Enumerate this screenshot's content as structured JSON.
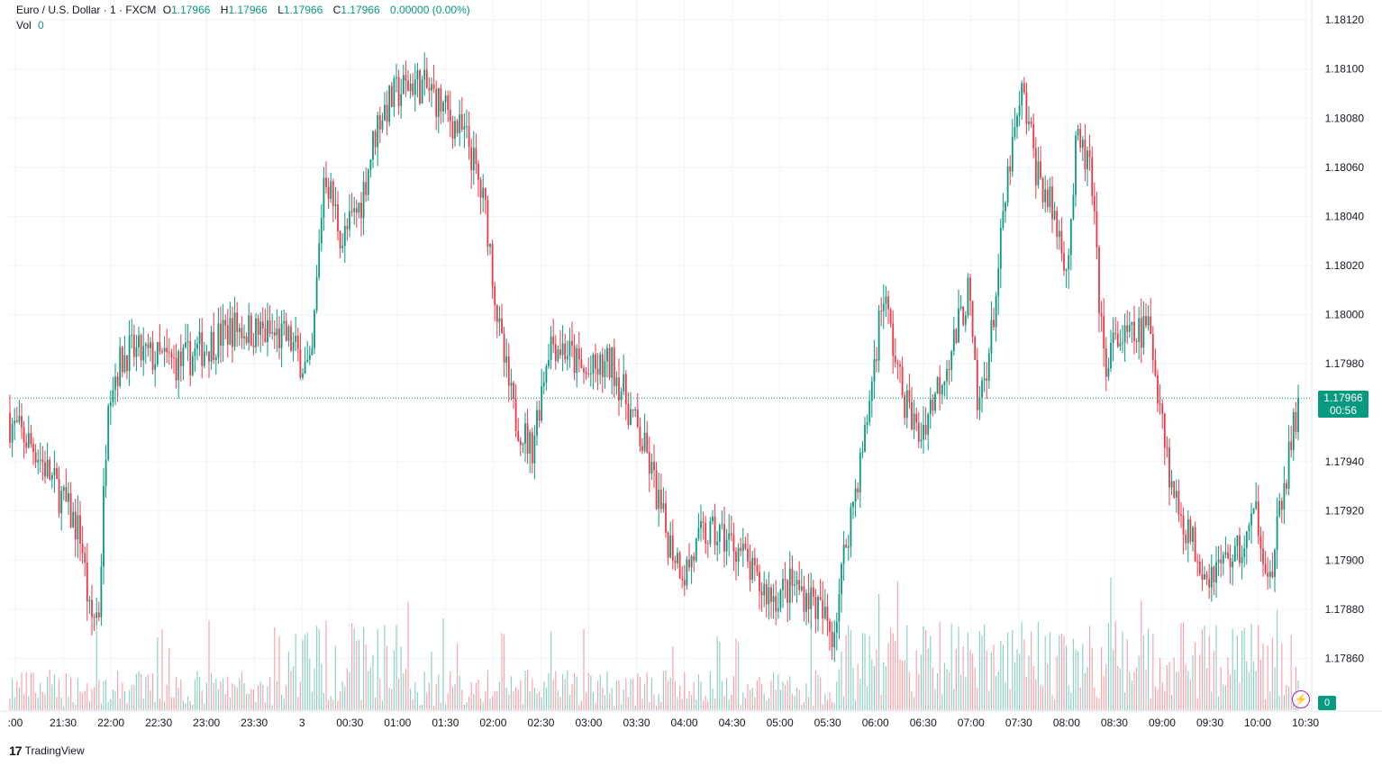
{
  "legend": {
    "symbol": "Euro / U.S. Dollar · 1 · FXCM",
    "o_label": "O",
    "o": "1.17966",
    "h_label": "H",
    "h": "1.17966",
    "l_label": "L",
    "l": "1.17966",
    "c_label": "C",
    "c": "1.17966",
    "change": "0.00000 (0.00%)",
    "vol_label": "Vol",
    "vol": "0"
  },
  "price_tag": {
    "price": "1.17966",
    "countdown": "00:56"
  },
  "volume_tag": "0",
  "brand": "TradingView",
  "colors": {
    "up": "#089981",
    "down": "#f23645",
    "grid": "#f0f3fa",
    "text": "#131722"
  },
  "chart_data": {
    "type": "candlestick",
    "y_ticks": [
      "1.18120",
      "1.18100",
      "1.18080",
      "1.18060",
      "1.18040",
      "1.18020",
      "1.18000",
      "1.17980",
      "1.17940",
      "1.17920",
      "1.17900",
      "1.17880",
      "1.17860"
    ],
    "ylim": [
      1.17855,
      1.18123
    ],
    "last_price": 1.17966,
    "x_ticks": [
      ":00",
      "21:30",
      "22:00",
      "22:30",
      "23:00",
      "23:30",
      "3",
      "00:30",
      "01:00",
      "01:30",
      "02:00",
      "02:30",
      "03:00",
      "03:30",
      "04:00",
      "04:30",
      "05:00",
      "05:30",
      "06:00",
      "06:30",
      "07:00",
      "07:30",
      "08:00",
      "08:30",
      "09:00",
      "09:30",
      "10:00",
      "10:30"
    ],
    "close_path": [
      [
        0,
        1.1796
      ],
      [
        40,
        1.17945
      ],
      [
        90,
        1.1791
      ],
      [
        100,
        1.17875
      ],
      [
        110,
        1.1788
      ],
      [
        120,
        1.1797
      ],
      [
        140,
        1.17985
      ],
      [
        200,
        1.1798
      ],
      [
        260,
        1.17995
      ],
      [
        320,
        1.1799
      ],
      [
        345,
        1.17975
      ],
      [
        360,
        1.1806
      ],
      [
        380,
        1.1803
      ],
      [
        400,
        1.18045
      ],
      [
        420,
        1.1808
      ],
      [
        440,
        1.1809
      ],
      [
        460,
        1.18095
      ],
      [
        480,
        1.1809
      ],
      [
        500,
        1.1808
      ],
      [
        520,
        1.1807
      ],
      [
        540,
        1.1804
      ],
      [
        555,
        1.1799
      ],
      [
        570,
        1.1796
      ],
      [
        590,
        1.17945
      ],
      [
        610,
        1.1799
      ],
      [
        630,
        1.17985
      ],
      [
        650,
        1.17975
      ],
      [
        680,
        1.1798
      ],
      [
        700,
        1.1796
      ],
      [
        720,
        1.1794
      ],
      [
        740,
        1.1791
      ],
      [
        760,
        1.17895
      ],
      [
        780,
        1.1791
      ],
      [
        800,
        1.1791
      ],
      [
        820,
        1.17905
      ],
      [
        840,
        1.1789
      ],
      [
        860,
        1.17885
      ],
      [
        880,
        1.1789
      ],
      [
        900,
        1.17885
      ],
      [
        925,
        1.1787
      ],
      [
        940,
        1.1791
      ],
      [
        960,
        1.1795
      ],
      [
        980,
        1.1801
      ],
      [
        1000,
        1.1797
      ],
      [
        1020,
        1.1795
      ],
      [
        1040,
        1.1797
      ],
      [
        1060,
        1.1799
      ],
      [
        1075,
        1.1801
      ],
      [
        1085,
        1.1796
      ],
      [
        1100,
        1.1799
      ],
      [
        1120,
        1.1806
      ],
      [
        1135,
        1.1809
      ],
      [
        1150,
        1.1806
      ],
      [
        1170,
        1.1804
      ],
      [
        1185,
        1.1802
      ],
      [
        1195,
        1.1807
      ],
      [
        1210,
        1.1806
      ],
      [
        1225,
        1.1798
      ],
      [
        1240,
        1.1799
      ],
      [
        1255,
        1.1799
      ],
      [
        1275,
        1.17995
      ],
      [
        1290,
        1.1796
      ],
      [
        1300,
        1.1793
      ],
      [
        1320,
        1.1791
      ],
      [
        1340,
        1.17895
      ],
      [
        1360,
        1.179
      ],
      [
        1380,
        1.17905
      ],
      [
        1395,
        1.1792
      ],
      [
        1410,
        1.1789
      ],
      [
        1425,
        1.1793
      ],
      [
        1442,
        1.17966
      ]
    ]
  }
}
